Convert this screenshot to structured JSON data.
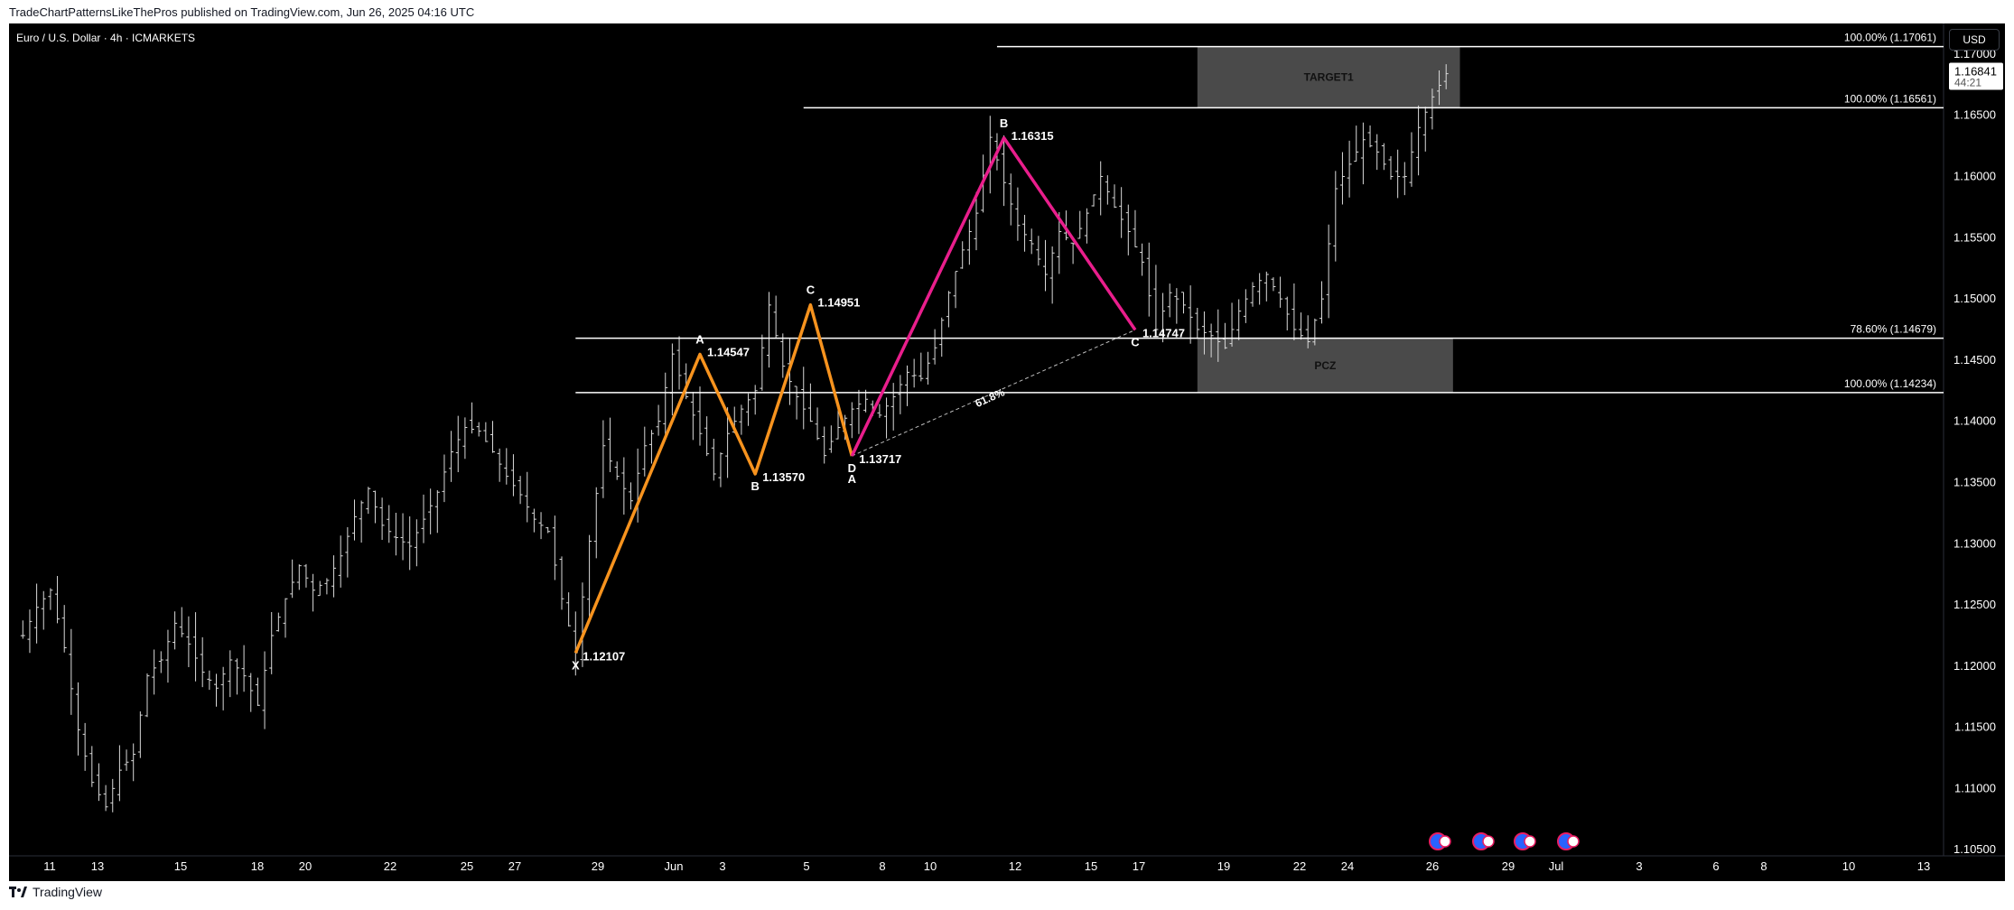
{
  "header": {
    "publisher_text": "TradeChartPatternsLikeThePros published on TradingView.com, Jun 26, 2025 04:16 UTC",
    "symbol_text": "Euro / U.S. Dollar · 4h · ICMARKETS",
    "currency": "USD"
  },
  "footer": {
    "brand": "TradingView"
  },
  "colors": {
    "background": "#000000",
    "candle": "#d9d9d9",
    "pattern1": "#f7931e",
    "pattern2": "#e91e8c",
    "zone": "#4a4a4a",
    "level": "#ffffff"
  },
  "chart_data": {
    "type": "line",
    "title": "",
    "ylim": [
      1.1045,
      1.1725
    ],
    "y_ticks": [
      1.105,
      1.11,
      1.115,
      1.12,
      1.125,
      1.13,
      1.135,
      1.14,
      1.145,
      1.15,
      1.155,
      1.16,
      1.165,
      1.17
    ],
    "y_tick_labels": [
      "1.10500",
      "1.11000",
      "1.11500",
      "1.12000",
      "1.12500",
      "1.13000",
      "1.13500",
      "1.14000",
      "1.14500",
      "1.15000",
      "1.15500",
      "1.16000",
      "1.16500",
      "1.17000"
    ],
    "x_labels": [
      "11",
      "13",
      "15",
      "18",
      "20",
      "22",
      "25",
      "27",
      "29",
      "Jun",
      "3",
      "5",
      "8",
      "10",
      "12",
      "15",
      "17",
      "19",
      "22",
      "24",
      "26",
      "29",
      "Jul",
      "3",
      "6",
      "8",
      "10",
      "13"
    ],
    "last_price": {
      "value": 1.16841,
      "label": "1.16841",
      "countdown": "44:21"
    },
    "price_path": [
      [
        0,
        1.1225
      ],
      [
        2,
        1.1248
      ],
      [
        4,
        1.1262
      ],
      [
        6,
        1.1215
      ],
      [
        8,
        1.1148
      ],
      [
        10,
        1.1105
      ],
      [
        12,
        1.1085
      ],
      [
        14,
        1.1115
      ],
      [
        16,
        1.1128
      ],
      [
        18,
        1.1192
      ],
      [
        20,
        1.1205
      ],
      [
        22,
        1.1235
      ],
      [
        24,
        1.1218
      ],
      [
        26,
        1.1195
      ],
      [
        28,
        1.1182
      ],
      [
        30,
        1.1205
      ],
      [
        32,
        1.1192
      ],
      [
        34,
        1.1168
      ],
      [
        36,
        1.1225
      ],
      [
        38,
        1.1255
      ],
      [
        40,
        1.1282
      ],
      [
        42,
        1.1262
      ],
      [
        44,
        1.127
      ],
      [
        46,
        1.129
      ],
      [
        48,
        1.1322
      ],
      [
        50,
        1.1345
      ],
      [
        52,
        1.1315
      ],
      [
        54,
        1.1305
      ],
      [
        56,
        1.1298
      ],
      [
        58,
        1.132
      ],
      [
        60,
        1.1342
      ],
      [
        62,
        1.1375
      ],
      [
        64,
        1.1395
      ],
      [
        66,
        1.1392
      ],
      [
        68,
        1.1375
      ],
      [
        70,
        1.1355
      ],
      [
        72,
        1.134
      ],
      [
        74,
        1.132
      ],
      [
        76,
        1.131
      ],
      [
        78,
        1.1255
      ],
      [
        80,
        1.1211
      ],
      [
        82,
        1.1302
      ],
      [
        84,
        1.138
      ],
      [
        86,
        1.1355
      ],
      [
        88,
        1.1335
      ],
      [
        90,
        1.138
      ],
      [
        92,
        1.14
      ],
      [
        94,
        1.1455
      ],
      [
        96,
        1.142
      ],
      [
        98,
        1.139
      ],
      [
        100,
        1.1357
      ],
      [
        102,
        1.139
      ],
      [
        104,
        1.141
      ],
      [
        106,
        1.1425
      ],
      [
        108,
        1.1495
      ],
      [
        110,
        1.1445
      ],
      [
        112,
        1.142
      ],
      [
        114,
        1.14
      ],
      [
        116,
        1.1372
      ],
      [
        118,
        1.1395
      ],
      [
        120,
        1.141
      ],
      [
        122,
        1.1418
      ],
      [
        124,
        1.1405
      ],
      [
        126,
        1.142
      ],
      [
        128,
        1.144
      ],
      [
        130,
        1.1435
      ],
      [
        132,
        1.146
      ],
      [
        134,
        1.1505
      ],
      [
        136,
        1.154
      ],
      [
        138,
        1.157
      ],
      [
        140,
        1.1632
      ],
      [
        142,
        1.1595
      ],
      [
        144,
        1.156
      ],
      [
        146,
        1.1545
      ],
      [
        148,
        1.152
      ],
      [
        150,
        1.1555
      ],
      [
        152,
        1.1545
      ],
      [
        154,
        1.157
      ],
      [
        156,
        1.16
      ],
      [
        158,
        1.1575
      ],
      [
        160,
        1.1555
      ],
      [
        162,
        1.153
      ],
      [
        164,
        1.1475
      ],
      [
        166,
        1.1505
      ],
      [
        168,
        1.1495
      ],
      [
        170,
        1.1475
      ],
      [
        172,
        1.147
      ],
      [
        174,
        1.146
      ],
      [
        176,
        1.149
      ],
      [
        178,
        1.151
      ],
      [
        180,
        1.152
      ],
      [
        182,
        1.15
      ],
      [
        184,
        1.1475
      ],
      [
        186,
        1.1465
      ],
      [
        188,
        1.15
      ],
      [
        190,
        1.159
      ],
      [
        192,
        1.161
      ],
      [
        194,
        1.163
      ],
      [
        196,
        1.162
      ],
      [
        198,
        1.16
      ],
      [
        200,
        1.16
      ],
      [
        202,
        1.164
      ],
      [
        204,
        1.1665
      ],
      [
        206,
        1.1684
      ]
    ],
    "x_index_range": [
      -2,
      278
    ],
    "patterns": [
      {
        "name": "pattern-orange",
        "color": "#f7931e",
        "points": [
          {
            "label": "X",
            "idx": 80,
            "price": 1.12107,
            "price_label": "1.12107",
            "label_pos": "below"
          },
          {
            "label": "A",
            "idx": 98,
            "price": 1.14547,
            "price_label": "1.14547",
            "label_pos": "above"
          },
          {
            "label": "B",
            "idx": 106,
            "price": 1.1357,
            "price_label": "1.13570",
            "label_pos": "below"
          },
          {
            "label": "C",
            "idx": 114,
            "price": 1.14951,
            "price_label": "1.14951",
            "label_pos": "above"
          },
          {
            "label": "D",
            "idx": 120,
            "price": 1.13717,
            "price_label": "1.13717",
            "label_pos": "below"
          }
        ]
      },
      {
        "name": "pattern-magenta",
        "color": "#e91e8c",
        "points": [
          {
            "label": "A",
            "idx": 120,
            "price": 1.13717,
            "price_label": "",
            "label_pos": "below2"
          },
          {
            "label": "B",
            "idx": 142,
            "price": 1.16315,
            "price_label": "1.16315",
            "label_pos": "above"
          },
          {
            "label": "C",
            "idx": 161,
            "price": 1.14747,
            "price_label": "1.14747",
            "label_pos": "below"
          }
        ]
      }
    ],
    "retracement": {
      "label": "61.8%",
      "from_idx": 120,
      "from_price": 1.13717,
      "to_idx": 161,
      "to_price": 1.14747
    },
    "levels": [
      {
        "label": "100.00% (1.17061)",
        "price": 1.17061,
        "start_idx": 141
      },
      {
        "label": "100.00% (1.16561)",
        "price": 1.16561,
        "start_idx": 113
      },
      {
        "label": "78.60% (1.14679)",
        "price": 1.14679,
        "start_idx": 80
      },
      {
        "label": "100.00% (1.14234)",
        "price": 1.14234,
        "start_idx": 80
      }
    ],
    "zones": [
      {
        "label": "TARGET1",
        "top": 1.17061,
        "bottom": 1.16561,
        "start_idx": 170,
        "end_idx": 208
      },
      {
        "label": "PCZ",
        "top": 1.14679,
        "bottom": 1.14234,
        "start_idx": 170,
        "end_idx": 207
      }
    ],
    "event_icons": [
      "event-icon",
      "event-icon",
      "event-icon",
      "event-icon"
    ]
  }
}
